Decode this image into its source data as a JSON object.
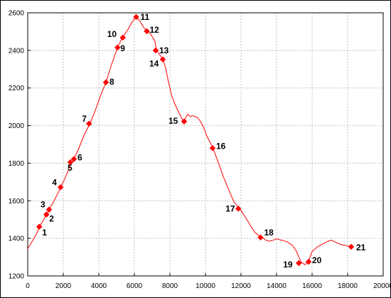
{
  "chart_data": {
    "type": "line",
    "title": "",
    "xlabel": "",
    "ylabel": "",
    "xlim": [
      0,
      20000
    ],
    "ylim": [
      1200,
      2600
    ],
    "grid": true,
    "x_ticks": [
      "0",
      "2000",
      "4000",
      "6000",
      "8000",
      "10000",
      "12000",
      "14000",
      "16000",
      "18000",
      "20000"
    ],
    "y_ticks": [
      "1200",
      "1400",
      "1600",
      "1800",
      "2000",
      "2200",
      "2400",
      "2600"
    ],
    "colors": {
      "line": "#ff0000",
      "marker": "#ff0000",
      "grid": "#c0c0c0",
      "frame": "#000000"
    },
    "series": [
      {
        "points": [
          [
            0,
            1345
          ],
          [
            250,
            1385
          ],
          [
            500,
            1425
          ],
          [
            650,
            1462
          ],
          [
            850,
            1492
          ],
          [
            1050,
            1527
          ],
          [
            1200,
            1553
          ],
          [
            1450,
            1595
          ],
          [
            1700,
            1640
          ],
          [
            1850,
            1672
          ],
          [
            2100,
            1720
          ],
          [
            2400,
            1790
          ],
          [
            2600,
            1822
          ],
          [
            2900,
            1885
          ],
          [
            3200,
            1955
          ],
          [
            3500,
            2010
          ],
          [
            3800,
            2080
          ],
          [
            4100,
            2160
          ],
          [
            4400,
            2230
          ],
          [
            4700,
            2320
          ],
          [
            5050,
            2415
          ],
          [
            5300,
            2465
          ],
          [
            5600,
            2505
          ],
          [
            5900,
            2555
          ],
          [
            6100,
            2578
          ],
          [
            6300,
            2558
          ],
          [
            6500,
            2525
          ],
          [
            6700,
            2502
          ],
          [
            6900,
            2490
          ],
          [
            7150,
            2450
          ],
          [
            7250,
            2400
          ],
          [
            7400,
            2380
          ],
          [
            7600,
            2352
          ],
          [
            7750,
            2310
          ],
          [
            7900,
            2240
          ],
          [
            8100,
            2160
          ],
          [
            8300,
            2110
          ],
          [
            8500,
            2070
          ],
          [
            8700,
            2032
          ],
          [
            8800,
            2022
          ],
          [
            8900,
            2045
          ],
          [
            9000,
            2060
          ],
          [
            9150,
            2048
          ],
          [
            9300,
            2052
          ],
          [
            9550,
            2043
          ],
          [
            9700,
            2025
          ],
          [
            9900,
            1990
          ],
          [
            10100,
            1940
          ],
          [
            10400,
            1885
          ],
          [
            10700,
            1810
          ],
          [
            11000,
            1730
          ],
          [
            11300,
            1660
          ],
          [
            11600,
            1595
          ],
          [
            11850,
            1565
          ],
          [
            12050,
            1540
          ],
          [
            12300,
            1505
          ],
          [
            12550,
            1465
          ],
          [
            12800,
            1430
          ],
          [
            13000,
            1415
          ],
          [
            13100,
            1410
          ],
          [
            13400,
            1390
          ],
          [
            13600,
            1385
          ],
          [
            13800,
            1390
          ],
          [
            14000,
            1397
          ],
          [
            14300,
            1390
          ],
          [
            14600,
            1382
          ],
          [
            14900,
            1362
          ],
          [
            15100,
            1335
          ],
          [
            15300,
            1290
          ],
          [
            15400,
            1272
          ],
          [
            15600,
            1260
          ],
          [
            15800,
            1278
          ],
          [
            16000,
            1330
          ],
          [
            16300,
            1355
          ],
          [
            16600,
            1370
          ],
          [
            16900,
            1385
          ],
          [
            17100,
            1390
          ],
          [
            17300,
            1380
          ],
          [
            17600,
            1368
          ],
          [
            17900,
            1362
          ],
          [
            18200,
            1355
          ]
        ]
      }
    ],
    "waypoints": [
      {
        "label": "1",
        "x": 650,
        "y": 1462
      },
      {
        "label": "2",
        "x": 1050,
        "y": 1527
      },
      {
        "label": "3",
        "x": 1200,
        "y": 1553
      },
      {
        "label": "4",
        "x": 1850,
        "y": 1672
      },
      {
        "label": "5",
        "x": 2400,
        "y": 1805
      },
      {
        "label": "6",
        "x": 2600,
        "y": 1822
      },
      {
        "label": "7",
        "x": 3450,
        "y": 2010
      },
      {
        "label": "8",
        "x": 4400,
        "y": 2230
      },
      {
        "label": "9",
        "x": 5050,
        "y": 2415
      },
      {
        "label": "10",
        "x": 5350,
        "y": 2468
      },
      {
        "label": "11",
        "x": 6100,
        "y": 2578
      },
      {
        "label": "12",
        "x": 6700,
        "y": 2502
      },
      {
        "label": "13",
        "x": 7200,
        "y": 2400
      },
      {
        "label": "14",
        "x": 7600,
        "y": 2352
      },
      {
        "label": "15",
        "x": 8800,
        "y": 2022
      },
      {
        "label": "16",
        "x": 10400,
        "y": 1880
      },
      {
        "label": "17",
        "x": 11850,
        "y": 1558
      },
      {
        "label": "18",
        "x": 13100,
        "y": 1405
      },
      {
        "label": "19",
        "x": 15250,
        "y": 1268
      },
      {
        "label": "20",
        "x": 15800,
        "y": 1275
      },
      {
        "label": "21",
        "x": 18200,
        "y": 1355
      }
    ]
  }
}
